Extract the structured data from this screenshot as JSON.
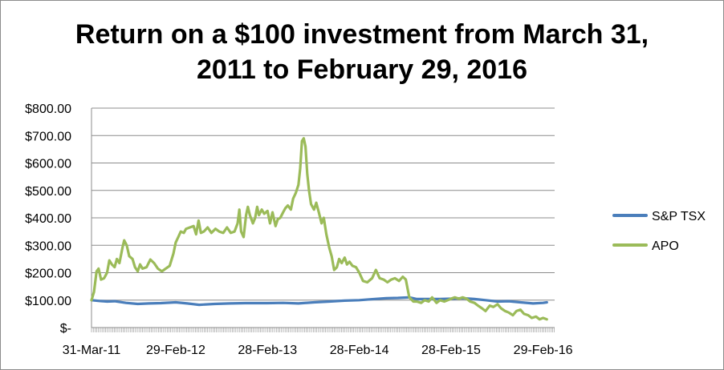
{
  "chart_data": {
    "type": "line",
    "title_line1": "Return on a $100 investment from March 31,",
    "title_line2": "2011 to February 29, 2016",
    "xlabel": "",
    "ylabel": "",
    "ylim": [
      0,
      800
    ],
    "y_ticks": [
      0,
      100,
      200,
      300,
      400,
      500,
      600,
      700,
      800
    ],
    "y_tick_labels": [
      "$-",
      "$100.00",
      "$200.00",
      "$300.00",
      "$400.00",
      "$500.00",
      "$600.00",
      "$700.00",
      "$800.00"
    ],
    "x_range": [
      "2011-03-31",
      "2016-02-29"
    ],
    "x_tick_dates": [
      "2011-03-31",
      "2012-02-29",
      "2013-02-28",
      "2014-02-28",
      "2015-02-28",
      "2016-02-29"
    ],
    "x_tick_labels": [
      "31-Mar-11",
      "29-Feb-12",
      "28-Feb-13",
      "28-Feb-14",
      "28-Feb-15",
      "29-Feb-16"
    ],
    "grid": "horizontal",
    "legend_position": "right",
    "series": [
      {
        "name": "S&P TSX",
        "color": "#4a7ebb",
        "points": [
          [
            "2011-03-31",
            100
          ],
          [
            "2011-05-01",
            97
          ],
          [
            "2011-06-01",
            95
          ],
          [
            "2011-07-01",
            96
          ],
          [
            "2011-08-15",
            90
          ],
          [
            "2011-10-01",
            86
          ],
          [
            "2011-11-15",
            88
          ],
          [
            "2012-01-01",
            89
          ],
          [
            "2012-02-29",
            92
          ],
          [
            "2012-04-15",
            88
          ],
          [
            "2012-06-01",
            83
          ],
          [
            "2012-08-01",
            86
          ],
          [
            "2012-10-01",
            88
          ],
          [
            "2012-12-01",
            89
          ],
          [
            "2013-02-28",
            89
          ],
          [
            "2013-05-01",
            90
          ],
          [
            "2013-07-01",
            88
          ],
          [
            "2013-09-01",
            92
          ],
          [
            "2013-11-01",
            95
          ],
          [
            "2014-01-01",
            98
          ],
          [
            "2014-02-28",
            100
          ],
          [
            "2014-04-15",
            103
          ],
          [
            "2014-06-15",
            107
          ],
          [
            "2014-08-01",
            108
          ],
          [
            "2014-09-15",
            110
          ],
          [
            "2014-10-15",
            104
          ],
          [
            "2014-12-01",
            104
          ],
          [
            "2015-01-15",
            104
          ],
          [
            "2015-02-28",
            105
          ],
          [
            "2015-04-15",
            107
          ],
          [
            "2015-06-01",
            104
          ],
          [
            "2015-07-15",
            100
          ],
          [
            "2015-09-01",
            95
          ],
          [
            "2015-10-15",
            96
          ],
          [
            "2015-12-01",
            92
          ],
          [
            "2016-01-20",
            88
          ],
          [
            "2016-02-29",
            90
          ],
          [
            "2016-03-15",
            92
          ]
        ]
      },
      {
        "name": "APO",
        "color": "#9bbb59",
        "points": [
          [
            "2011-03-31",
            100
          ],
          [
            "2011-04-10",
            130
          ],
          [
            "2011-04-20",
            205
          ],
          [
            "2011-04-28",
            215
          ],
          [
            "2011-05-08",
            175
          ],
          [
            "2011-05-20",
            180
          ],
          [
            "2011-06-01",
            200
          ],
          [
            "2011-06-10",
            245
          ],
          [
            "2011-06-20",
            230
          ],
          [
            "2011-07-01",
            220
          ],
          [
            "2011-07-10",
            250
          ],
          [
            "2011-07-20",
            235
          ],
          [
            "2011-08-01",
            290
          ],
          [
            "2011-08-08",
            318
          ],
          [
            "2011-08-18",
            300
          ],
          [
            "2011-08-28",
            260
          ],
          [
            "2011-09-10",
            250
          ],
          [
            "2011-09-20",
            220
          ],
          [
            "2011-10-01",
            205
          ],
          [
            "2011-10-10",
            230
          ],
          [
            "2011-10-20",
            215
          ],
          [
            "2011-11-05",
            220
          ],
          [
            "2011-11-20",
            248
          ],
          [
            "2011-12-05",
            235
          ],
          [
            "2011-12-20",
            215
          ],
          [
            "2012-01-05",
            205
          ],
          [
            "2012-01-20",
            215
          ],
          [
            "2012-02-05",
            225
          ],
          [
            "2012-02-20",
            270
          ],
          [
            "2012-02-29",
            310
          ],
          [
            "2012-03-10",
            330
          ],
          [
            "2012-03-20",
            350
          ],
          [
            "2012-04-01",
            345
          ],
          [
            "2012-04-10",
            360
          ],
          [
            "2012-04-25",
            365
          ],
          [
            "2012-05-10",
            370
          ],
          [
            "2012-05-20",
            340
          ],
          [
            "2012-05-30",
            390
          ],
          [
            "2012-06-08",
            345
          ],
          [
            "2012-06-20",
            350
          ],
          [
            "2012-07-05",
            365
          ],
          [
            "2012-07-20",
            345
          ],
          [
            "2012-08-05",
            360
          ],
          [
            "2012-08-20",
            350
          ],
          [
            "2012-09-05",
            345
          ],
          [
            "2012-09-20",
            365
          ],
          [
            "2012-10-05",
            345
          ],
          [
            "2012-10-20",
            350
          ],
          [
            "2012-11-01",
            380
          ],
          [
            "2012-11-08",
            430
          ],
          [
            "2012-11-15",
            350
          ],
          [
            "2012-11-25",
            330
          ],
          [
            "2012-12-05",
            410
          ],
          [
            "2012-12-12",
            440
          ],
          [
            "2012-12-20",
            410
          ],
          [
            "2013-01-01",
            380
          ],
          [
            "2013-01-10",
            400
          ],
          [
            "2013-01-18",
            440
          ],
          [
            "2013-01-25",
            410
          ],
          [
            "2013-02-05",
            430
          ],
          [
            "2013-02-15",
            415
          ],
          [
            "2013-02-28",
            425
          ],
          [
            "2013-03-10",
            380
          ],
          [
            "2013-03-20",
            420
          ],
          [
            "2013-04-01",
            370
          ],
          [
            "2013-04-10",
            395
          ],
          [
            "2013-04-20",
            400
          ],
          [
            "2013-05-01",
            420
          ],
          [
            "2013-05-10",
            435
          ],
          [
            "2013-05-20",
            445
          ],
          [
            "2013-06-01",
            430
          ],
          [
            "2013-06-10",
            470
          ],
          [
            "2013-06-20",
            490
          ],
          [
            "2013-07-01",
            520
          ],
          [
            "2013-07-08",
            580
          ],
          [
            "2013-07-15",
            680
          ],
          [
            "2013-07-22",
            690
          ],
          [
            "2013-07-29",
            660
          ],
          [
            "2013-08-05",
            560
          ],
          [
            "2013-08-12",
            500
          ],
          [
            "2013-08-20",
            450
          ],
          [
            "2013-09-01",
            430
          ],
          [
            "2013-09-10",
            455
          ],
          [
            "2013-09-20",
            420
          ],
          [
            "2013-10-01",
            380
          ],
          [
            "2013-10-10",
            400
          ],
          [
            "2013-10-20",
            340
          ],
          [
            "2013-11-01",
            290
          ],
          [
            "2013-11-10",
            260
          ],
          [
            "2013-11-20",
            210
          ],
          [
            "2013-12-01",
            220
          ],
          [
            "2013-12-10",
            250
          ],
          [
            "2013-12-20",
            235
          ],
          [
            "2014-01-01",
            255
          ],
          [
            "2014-01-10",
            230
          ],
          [
            "2014-01-20",
            240
          ],
          [
            "2014-02-01",
            225
          ],
          [
            "2014-02-15",
            220
          ],
          [
            "2014-02-28",
            200
          ],
          [
            "2014-03-15",
            170
          ],
          [
            "2014-04-01",
            165
          ],
          [
            "2014-04-20",
            180
          ],
          [
            "2014-05-05",
            210
          ],
          [
            "2014-05-20",
            180
          ],
          [
            "2014-06-05",
            175
          ],
          [
            "2014-06-20",
            165
          ],
          [
            "2014-07-05",
            175
          ],
          [
            "2014-07-20",
            180
          ],
          [
            "2014-08-05",
            170
          ],
          [
            "2014-08-20",
            185
          ],
          [
            "2014-09-01",
            175
          ],
          [
            "2014-09-15",
            110
          ],
          [
            "2014-10-01",
            95
          ],
          [
            "2014-10-15",
            95
          ],
          [
            "2014-11-01",
            90
          ],
          [
            "2014-11-15",
            100
          ],
          [
            "2014-12-01",
            95
          ],
          [
            "2014-12-15",
            110
          ],
          [
            "2015-01-01",
            90
          ],
          [
            "2015-01-15",
            100
          ],
          [
            "2015-02-01",
            95
          ],
          [
            "2015-02-15",
            100
          ],
          [
            "2015-02-28",
            105
          ],
          [
            "2015-03-15",
            110
          ],
          [
            "2015-04-01",
            105
          ],
          [
            "2015-04-15",
            110
          ],
          [
            "2015-05-01",
            105
          ],
          [
            "2015-05-15",
            95
          ],
          [
            "2015-06-01",
            90
          ],
          [
            "2015-06-15",
            80
          ],
          [
            "2015-07-01",
            70
          ],
          [
            "2015-07-15",
            60
          ],
          [
            "2015-08-01",
            80
          ],
          [
            "2015-08-15",
            75
          ],
          [
            "2015-09-01",
            85
          ],
          [
            "2015-09-15",
            70
          ],
          [
            "2015-10-01",
            60
          ],
          [
            "2015-10-15",
            55
          ],
          [
            "2015-11-01",
            45
          ],
          [
            "2015-11-15",
            60
          ],
          [
            "2015-12-01",
            65
          ],
          [
            "2015-12-15",
            50
          ],
          [
            "2016-01-01",
            45
          ],
          [
            "2016-01-15",
            35
          ],
          [
            "2016-02-01",
            40
          ],
          [
            "2016-02-15",
            30
          ],
          [
            "2016-02-29",
            35
          ],
          [
            "2016-03-15",
            30
          ]
        ]
      }
    ]
  }
}
